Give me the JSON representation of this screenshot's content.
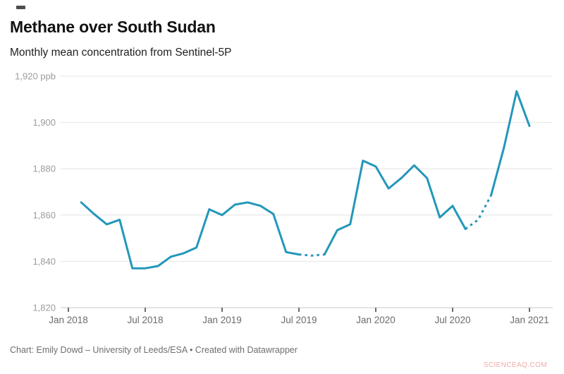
{
  "header": {
    "title": "Methane over South Sudan",
    "subtitle": "Monthly mean concentration from Sentinel-5P"
  },
  "footer": {
    "credit": "Chart: Emily Dowd – University of Leeds/ESA • Created with Datawrapper"
  },
  "watermark": {
    "text": "SCIENCEAQ.COM",
    "color": "#f2a9a9"
  },
  "chart_data": {
    "type": "line",
    "title": "Methane over South Sudan",
    "subtitle": "Monthly mean concentration from Sentinel-5P",
    "unit": "ppb",
    "line_color": "#2397ba",
    "grid": "horizontal",
    "legend": "none",
    "ylim": [
      1820,
      1920
    ],
    "yticks": [
      {
        "value": 1920,
        "label": "1,920 ppb"
      },
      {
        "value": 1900,
        "label": "1,900"
      },
      {
        "value": 1880,
        "label": "1,880"
      },
      {
        "value": 1860,
        "label": "1,860"
      },
      {
        "value": 1840,
        "label": "1,840"
      },
      {
        "value": 1820,
        "label": "1,820"
      }
    ],
    "xticks": [
      {
        "label": "Jan 2018",
        "offset": 0
      },
      {
        "label": "Jul 2018",
        "offset": 6
      },
      {
        "label": "Jan 2019",
        "offset": 12
      },
      {
        "label": "Jul 2019",
        "offset": 18
      },
      {
        "label": "Jan 2020",
        "offset": 24
      },
      {
        "label": "Jul 2020",
        "offset": 30
      },
      {
        "label": "Jan 2021",
        "offset": 36
      }
    ],
    "start_offset": 1,
    "x": [
      "Feb 2018",
      "Mar 2018",
      "Apr 2018",
      "May 2018",
      "Jun 2018",
      "Jul 2018",
      "Aug 2018",
      "Sep 2018",
      "Oct 2018",
      "Nov 2018",
      "Dec 2018",
      "Jan 2019",
      "Feb 2019",
      "Mar 2019",
      "Apr 2019",
      "May 2019",
      "Jun 2019",
      "Jul 2019",
      "Aug 2019",
      "Sep 2019",
      "Oct 2019",
      "Nov 2019",
      "Dec 2019",
      "Jan 2020",
      "Feb 2020",
      "Mar 2020",
      "Apr 2020",
      "May 2020",
      "Jun 2020",
      "Jul 2020",
      "Aug 2020",
      "Sep 2020",
      "Oct 2020",
      "Nov 2020",
      "Dec 2020",
      "Jan 2021"
    ],
    "values": [
      1865.5,
      1860.5,
      1856,
      1858,
      1837,
      1837,
      1838,
      1842,
      1843.5,
      1846,
      1862.5,
      1860,
      1864.5,
      1865.5,
      1864,
      1860.5,
      1844,
      1843,
      1842.5,
      1843,
      1853.5,
      1856,
      1883.5,
      1881,
      1871.5,
      1876,
      1881.5,
      1876,
      1859,
      1864,
      1854,
      1858,
      1868.5,
      1889,
      1913.5,
      1898.5
    ],
    "dashed_point_ranges": [
      [
        17,
        19
      ],
      [
        30,
        32
      ]
    ]
  }
}
